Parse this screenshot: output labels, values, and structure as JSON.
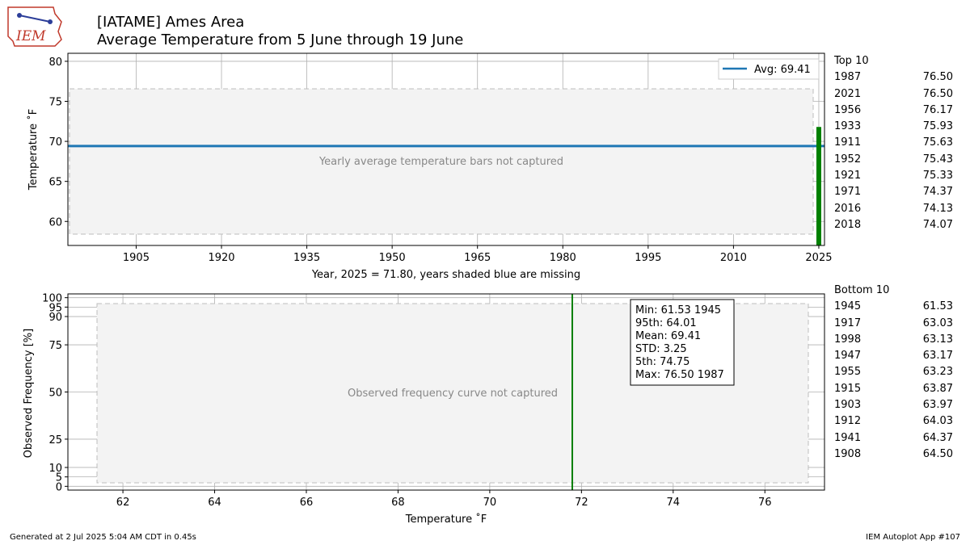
{
  "logo": {
    "text": "IEM"
  },
  "header": {
    "title": "[IATAME] Ames Area",
    "subtitle": "Average Temperature from 5 June through 19 June"
  },
  "colors": {
    "bars": "#ff0000",
    "current_year": "#008000",
    "avg_line": "#1f77b4",
    "curve": "#1f77b4",
    "marker": "#008000"
  },
  "chart_data": [
    {
      "type": "bar",
      "ylabel": "Temperature ˚F",
      "xlabel": "Year, 2025 = 71.80, years shaded blue are missing",
      "ylim": [
        57,
        81
      ],
      "xlim": [
        1893,
        2026
      ],
      "yticks": [
        60,
        65,
        70,
        75,
        80
      ],
      "xticks": [
        1905,
        1920,
        1935,
        1950,
        1965,
        1980,
        1995,
        2010,
        2025
      ],
      "legend": "Avg: 69.41",
      "legend_position": "top-right",
      "avg": 69.41,
      "current_year": {
        "x": 2025,
        "y": 71.8
      },
      "grid": true
    },
    {
      "type": "line",
      "xlabel": "Temperature ˚F",
      "ylabel": "Observed Frequency [%]",
      "xlim": [
        60.8,
        77.3
      ],
      "ylim": [
        -2,
        102
      ],
      "xticks": [
        62,
        64,
        66,
        68,
        70,
        72,
        74,
        76
      ],
      "yticks": [
        0,
        5,
        10,
        25,
        50,
        75,
        90,
        95,
        100
      ],
      "marker_x": 71.8,
      "grid": true,
      "stats_lines": [
        "Min: 61.53 1945",
        "95th: 64.01",
        "Mean: 69.41",
        "STD: 3.25",
        "5th: 74.75",
        "Max: 76.50 1987"
      ]
    }
  ],
  "top10": {
    "title": "Top 10",
    "rows": [
      {
        "year": "1987",
        "value": "76.50"
      },
      {
        "year": "2021",
        "value": "76.50"
      },
      {
        "year": "1956",
        "value": "76.17"
      },
      {
        "year": "1933",
        "value": "75.93"
      },
      {
        "year": "1911",
        "value": "75.63"
      },
      {
        "year": "1952",
        "value": "75.43"
      },
      {
        "year": "1921",
        "value": "75.33"
      },
      {
        "year": "1971",
        "value": "74.37"
      },
      {
        "year": "2016",
        "value": "74.13"
      },
      {
        "year": "2018",
        "value": "74.07"
      }
    ]
  },
  "bottom10": {
    "title": "Bottom 10",
    "rows": [
      {
        "year": "1945",
        "value": "61.53"
      },
      {
        "year": "1917",
        "value": "63.03"
      },
      {
        "year": "1998",
        "value": "63.13"
      },
      {
        "year": "1947",
        "value": "63.17"
      },
      {
        "year": "1955",
        "value": "63.23"
      },
      {
        "year": "1915",
        "value": "63.87"
      },
      {
        "year": "1903",
        "value": "63.97"
      },
      {
        "year": "1912",
        "value": "64.03"
      },
      {
        "year": "1941",
        "value": "64.37"
      },
      {
        "year": "1908",
        "value": "64.50"
      }
    ]
  },
  "footer": {
    "left": "Generated at 2 Jul 2025 5:04 AM CDT in 0.45s",
    "right": "IEM Autoplot App #107"
  }
}
